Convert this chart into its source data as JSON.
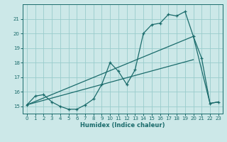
{
  "xlabel": "Humidex (Indice chaleur)",
  "xlim": [
    -0.5,
    23.5
  ],
  "ylim": [
    14.5,
    22.0
  ],
  "yticks": [
    15,
    16,
    17,
    18,
    19,
    20,
    21
  ],
  "xticks": [
    0,
    1,
    2,
    3,
    4,
    5,
    6,
    7,
    8,
    9,
    10,
    11,
    12,
    13,
    14,
    15,
    16,
    17,
    18,
    19,
    20,
    21,
    22,
    23
  ],
  "bg_color": "#cce8e8",
  "grid_color": "#99cccc",
  "line_color": "#1a6b6b",
  "line1_x": [
    0,
    1,
    2,
    3,
    4,
    5,
    6,
    7,
    8,
    9,
    10,
    11,
    12,
    13,
    14,
    15,
    16,
    17,
    18,
    19,
    20,
    21,
    22,
    23
  ],
  "line1_y": [
    15.1,
    15.7,
    15.8,
    15.3,
    15.0,
    14.8,
    14.8,
    15.1,
    15.5,
    16.5,
    18.0,
    17.4,
    16.5,
    17.5,
    20.0,
    20.6,
    20.7,
    21.3,
    21.2,
    21.5,
    19.8,
    18.3,
    15.2,
    15.3
  ],
  "line2_x": [
    0,
    20,
    22,
    23
  ],
  "line2_y": [
    15.1,
    19.8,
    15.2,
    15.3
  ],
  "line3_x": [
    0,
    20
  ],
  "line3_y": [
    15.1,
    18.2
  ]
}
